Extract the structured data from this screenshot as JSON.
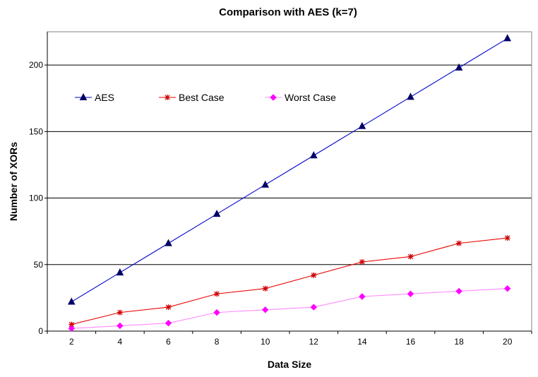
{
  "chart_data": {
    "type": "line",
    "title": "Comparison with AES (k=7)",
    "xlabel": "Data Size",
    "ylabel": "Number of XORs",
    "x": [
      2,
      4,
      6,
      8,
      10,
      12,
      14,
      16,
      18,
      20
    ],
    "xticks": [
      "2",
      "4",
      "6",
      "8",
      "10",
      "12",
      "14",
      "16",
      "18",
      "20"
    ],
    "ylim": [
      0,
      225
    ],
    "yticks": [
      "0",
      "50",
      "100",
      "150",
      "200"
    ],
    "ytick_values": [
      0,
      50,
      100,
      150,
      200
    ],
    "grid": "horizontal",
    "legend_position": "top-left",
    "series": [
      {
        "name": "AES",
        "color": "#0000cc",
        "marker": "triangle",
        "marker_color": "#000066",
        "values": [
          22,
          44,
          66,
          88,
          110,
          132,
          154,
          176,
          198,
          220
        ]
      },
      {
        "name": "Best Case",
        "color": "#ee0000",
        "marker": "asterisk",
        "marker_color": "#cc0000",
        "values": [
          5,
          14,
          18,
          28,
          32,
          42,
          52,
          56,
          66,
          70
        ]
      },
      {
        "name": "Worst Case",
        "color": "#ff88ff",
        "marker": "diamond",
        "marker_color": "#ff00ff",
        "values": [
          2,
          4,
          6,
          14,
          16,
          18,
          26,
          28,
          30,
          32
        ]
      }
    ]
  }
}
